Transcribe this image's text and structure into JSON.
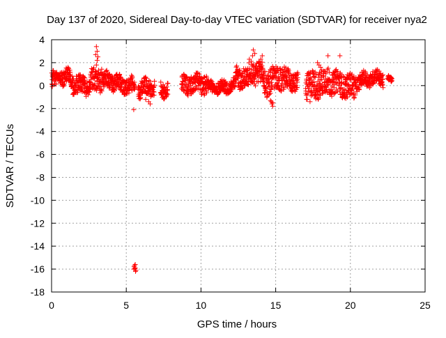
{
  "chart_data": {
    "type": "scatter",
    "title": "Day 137 of 2020, Sidereal Day-to-day VTEC variation (SDTVAR) for receiver nya2",
    "xlabel": "GPS time / hours",
    "ylabel": "SDTVAR / TECUs",
    "xlim": [
      0,
      25
    ],
    "ylim": [
      -18,
      4
    ],
    "xticks": [
      0,
      5,
      10,
      15,
      20,
      25
    ],
    "yticks": [
      4,
      2,
      0,
      -2,
      -4,
      -6,
      -8,
      -10,
      -12,
      -14,
      -16,
      -18
    ],
    "grid": true,
    "marker": "+",
    "series_color": "#ff0000",
    "series": [
      {
        "name": "SDTVAR",
        "segments": [
          {
            "x0": 0.0,
            "x1": 1.4,
            "center": 0.5,
            "spread": 0.7
          },
          {
            "x0": 1.4,
            "x1": 2.6,
            "center": 0.2,
            "spread": 0.8
          },
          {
            "x0": 2.6,
            "x1": 3.4,
            "center": 0.5,
            "spread": 1.0
          },
          {
            "x0": 3.4,
            "x1": 5.6,
            "center": 0.2,
            "spread": 0.7
          },
          {
            "x0": 5.8,
            "x1": 6.9,
            "center": -0.3,
            "spread": 0.7
          },
          {
            "x0": 7.3,
            "x1": 7.8,
            "center": -0.3,
            "spread": 0.6
          },
          {
            "x0": 8.7,
            "x1": 10.4,
            "center": 0.0,
            "spread": 0.8
          },
          {
            "x0": 10.4,
            "x1": 12.3,
            "center": 0.0,
            "spread": 0.5
          },
          {
            "x0": 12.3,
            "x1": 13.2,
            "center": 0.5,
            "spread": 0.9
          },
          {
            "x0": 13.2,
            "x1": 14.2,
            "center": 1.2,
            "spread": 1.0
          },
          {
            "x0": 14.2,
            "x1": 15.6,
            "center": 0.5,
            "spread": 1.1
          },
          {
            "x0": 15.6,
            "x1": 16.5,
            "center": 0.3,
            "spread": 0.8
          },
          {
            "x0": 17.0,
            "x1": 18.6,
            "center": 0.2,
            "spread": 1.2
          },
          {
            "x0": 18.6,
            "x1": 20.4,
            "center": 0.1,
            "spread": 1.0
          },
          {
            "x0": 20.4,
            "x1": 22.2,
            "center": 0.5,
            "spread": 0.6
          },
          {
            "x0": 22.5,
            "x1": 22.8,
            "center": 0.5,
            "spread": 0.2
          }
        ],
        "extra_points": [
          {
            "x": 3.0,
            "y": 3.4
          },
          {
            "x": 3.05,
            "y": 3.0
          },
          {
            "x": 3.1,
            "y": 2.5
          },
          {
            "x": 2.95,
            "y": 2.7
          },
          {
            "x": 3.0,
            "y": 1.8
          },
          {
            "x": 3.05,
            "y": 2.2
          },
          {
            "x": 5.5,
            "y": -2.1
          },
          {
            "x": 5.55,
            "y": -15.7
          },
          {
            "x": 5.6,
            "y": -15.9
          },
          {
            "x": 5.65,
            "y": -16.1
          },
          {
            "x": 5.5,
            "y": -16.0
          },
          {
            "x": 5.6,
            "y": -15.6
          },
          {
            "x": 5.52,
            "y": -15.8
          },
          {
            "x": 5.62,
            "y": -16.2
          },
          {
            "x": 5.58,
            "y": -15.95
          },
          {
            "x": 13.5,
            "y": 3.1
          },
          {
            "x": 13.6,
            "y": 2.8
          },
          {
            "x": 13.45,
            "y": 2.6
          },
          {
            "x": 14.0,
            "y": 2.3
          },
          {
            "x": 14.1,
            "y": 2.6
          },
          {
            "x": 13.9,
            "y": 2.1
          },
          {
            "x": 18.5,
            "y": 2.6
          },
          {
            "x": 19.3,
            "y": 2.6
          },
          {
            "x": 17.8,
            "y": 2.0
          },
          {
            "x": 17.9,
            "y": 1.8
          },
          {
            "x": 18.0,
            "y": 1.6
          },
          {
            "x": 14.7,
            "y": -1.4
          },
          {
            "x": 14.75,
            "y": -1.6
          },
          {
            "x": 14.8,
            "y": -1.8
          },
          {
            "x": 14.65,
            "y": -1.3
          },
          {
            "x": 14.8,
            "y": -1.5
          },
          {
            "x": 6.3,
            "y": -1.2
          },
          {
            "x": 6.5,
            "y": -1.4
          },
          {
            "x": 6.6,
            "y": -1.6
          },
          {
            "x": 16.3,
            "y": -0.5
          },
          {
            "x": 17.3,
            "y": -1.4
          },
          {
            "x": 19.8,
            "y": -1.0
          }
        ]
      }
    ]
  }
}
